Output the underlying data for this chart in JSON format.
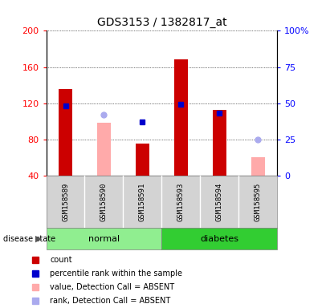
{
  "title": "GDS3153 / 1382817_at",
  "samples": [
    "GSM158589",
    "GSM158590",
    "GSM158591",
    "GSM158593",
    "GSM158594",
    "GSM158595"
  ],
  "ylim_left": [
    40,
    200
  ],
  "ylim_right": [
    0,
    100
  ],
  "yticks_left": [
    40,
    80,
    120,
    160,
    200
  ],
  "yticks_right": [
    0,
    25,
    50,
    75,
    100
  ],
  "red_bars": [
    136,
    null,
    75,
    168,
    113,
    null
  ],
  "pink_bars": [
    null,
    98,
    null,
    null,
    null,
    60
  ],
  "blue_squares_right": [
    48,
    null,
    37,
    49,
    43,
    null
  ],
  "light_blue_circles_right": [
    null,
    42,
    null,
    null,
    null,
    25
  ],
  "normal_color": "#90ee90",
  "diabetes_color": "#32cd32",
  "label_bg_color": "#d3d3d3",
  "legend_labels": [
    "count",
    "percentile rank within the sample",
    "value, Detection Call = ABSENT",
    "rank, Detection Call = ABSENT"
  ],
  "legend_colors": [
    "#cc0000",
    "#0000cc",
    "#ffaaaa",
    "#aaaaee"
  ]
}
